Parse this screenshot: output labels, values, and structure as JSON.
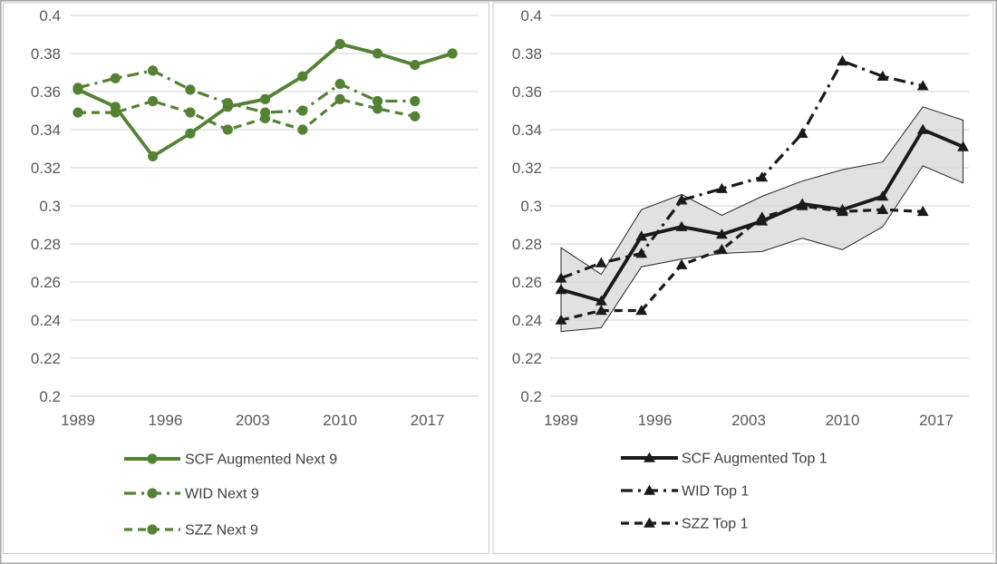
{
  "style": {
    "background": "#ffffff",
    "outer_border_color": "#a6a6a6",
    "panel_border_color": "#c9c9c9",
    "gridline_color": "#d9d9d9",
    "axis_text_color": "#595959",
    "legend_text_color": "#404040",
    "left_series_color": "#548235",
    "right_series_color": "#1a1a1a",
    "band_fill_color": "#d9d9d9",
    "band_edge_color": "#262626"
  },
  "axes": {
    "y_ticks": [
      {
        "v": 0.4,
        "label": "0.4"
      },
      {
        "v": 0.38,
        "label": "0.38"
      },
      {
        "v": 0.36,
        "label": "0.36"
      },
      {
        "v": 0.34,
        "label": "0.34"
      },
      {
        "v": 0.32,
        "label": "0.32"
      },
      {
        "v": 0.3,
        "label": "0.3"
      },
      {
        "v": 0.28,
        "label": "0.28"
      },
      {
        "v": 0.26,
        "label": "0.26"
      },
      {
        "v": 0.24,
        "label": "0.24"
      },
      {
        "v": 0.22,
        "label": "0.22"
      },
      {
        "v": 0.2,
        "label": "0.2"
      }
    ],
    "x_ticks": [
      {
        "year": 1989,
        "label": "1989"
      },
      {
        "year": 1996,
        "label": "1996"
      },
      {
        "year": 2003,
        "label": "2003"
      },
      {
        "year": 2010,
        "label": "2010"
      },
      {
        "year": 2017,
        "label": "2017"
      }
    ]
  },
  "chart_data": [
    {
      "type": "line",
      "panel": "next9",
      "title": "",
      "xlabel": "",
      "ylabel": "",
      "ylim": [
        0.2,
        0.4
      ],
      "grid": true,
      "legend_position": "bottom-left",
      "color": "#548235",
      "marker": "circle",
      "series": [
        {
          "name": "SCF Augmented Next 9",
          "style": "solid",
          "years": [
            1989,
            1992,
            1995,
            1998,
            2001,
            2004,
            2007,
            2010,
            2013,
            2016,
            2019
          ],
          "values": [
            0.361,
            0.352,
            0.326,
            0.338,
            0.352,
            0.356,
            0.368,
            0.385,
            0.38,
            0.374,
            0.38
          ]
        },
        {
          "name": "WID Next 9",
          "style": "dash-dot",
          "years": [
            1989,
            1992,
            1995,
            1998,
            2001,
            2004,
            2007,
            2010,
            2013,
            2016
          ],
          "values": [
            0.362,
            0.367,
            0.371,
            0.361,
            0.354,
            0.349,
            0.35,
            0.364,
            0.355,
            0.355
          ]
        },
        {
          "name": "SZZ Next 9",
          "style": "dash",
          "years": [
            1989,
            1992,
            1995,
            1998,
            2001,
            2004,
            2007,
            2010,
            2013,
            2016
          ],
          "values": [
            0.349,
            0.349,
            0.355,
            0.349,
            0.34,
            0.346,
            0.34,
            0.356,
            0.351,
            0.347
          ]
        }
      ]
    },
    {
      "type": "line",
      "panel": "top1",
      "title": "",
      "xlabel": "",
      "ylabel": "",
      "ylim": [
        0.2,
        0.4
      ],
      "grid": true,
      "legend_position": "bottom-left",
      "color": "#1a1a1a",
      "marker": "triangle",
      "band": {
        "name": "confidence-band",
        "years": [
          1989,
          1992,
          1995,
          1998,
          2001,
          2004,
          2007,
          2010,
          2013,
          2016,
          2019
        ],
        "upper": [
          0.278,
          0.264,
          0.298,
          0.306,
          0.295,
          0.305,
          0.313,
          0.319,
          0.323,
          0.352,
          0.345
        ],
        "lower": [
          0.234,
          0.236,
          0.268,
          0.272,
          0.275,
          0.276,
          0.283,
          0.277,
          0.289,
          0.321,
          0.312
        ]
      },
      "series": [
        {
          "name": "SCF Augmented Top 1",
          "style": "solid",
          "years": [
            1989,
            1992,
            1995,
            1998,
            2001,
            2004,
            2007,
            2010,
            2013,
            2016,
            2019
          ],
          "values": [
            0.256,
            0.25,
            0.284,
            0.289,
            0.285,
            0.292,
            0.301,
            0.298,
            0.305,
            0.34,
            0.331
          ]
        },
        {
          "name": "WID Top 1",
          "style": "dash-dot",
          "years": [
            1989,
            1992,
            1995,
            1998,
            2001,
            2004,
            2007,
            2010,
            2013,
            2016
          ],
          "values": [
            0.262,
            0.27,
            0.275,
            0.303,
            0.309,
            0.315,
            0.338,
            0.376,
            0.368,
            0.363
          ]
        },
        {
          "name": "SZZ Top 1",
          "style": "dash",
          "years": [
            1989,
            1992,
            1995,
            1998,
            2001,
            2004,
            2007,
            2010,
            2013,
            2016
          ],
          "values": [
            0.24,
            0.245,
            0.245,
            0.269,
            0.277,
            0.294,
            0.3,
            0.297,
            0.298,
            0.297
          ]
        }
      ]
    }
  ]
}
